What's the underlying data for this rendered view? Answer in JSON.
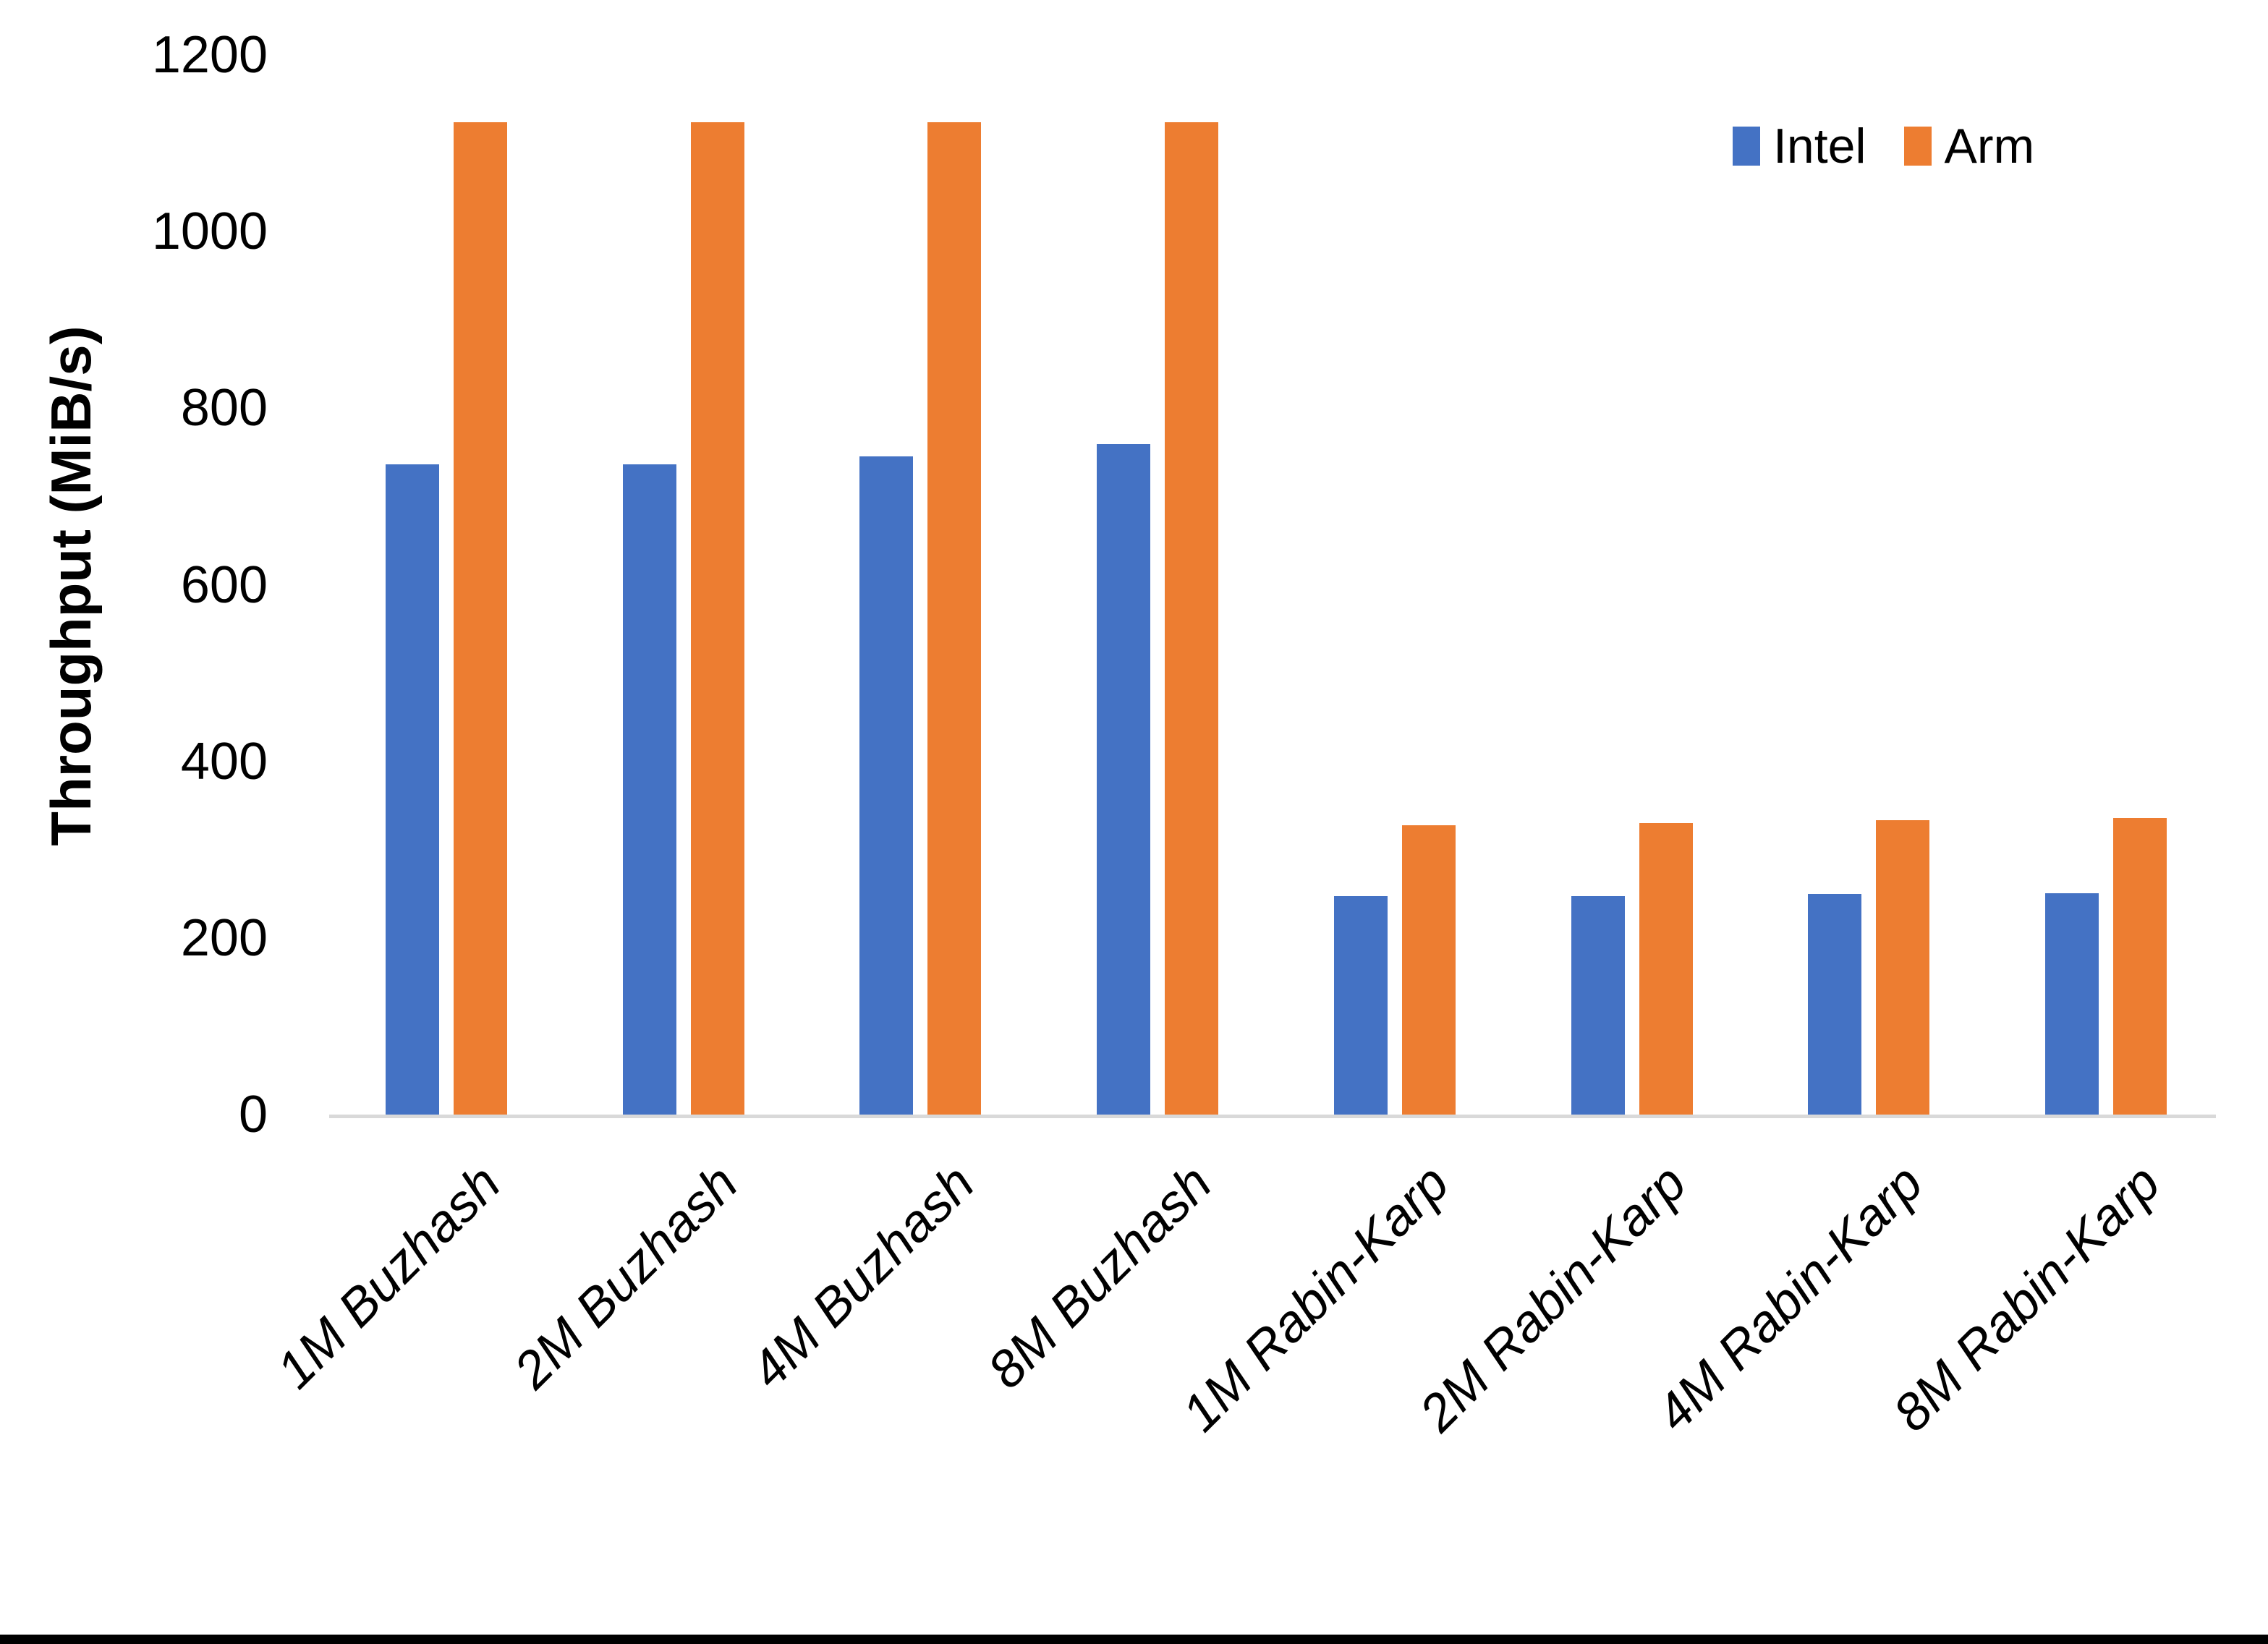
{
  "chart_data": {
    "type": "bar",
    "title": "",
    "xlabel": "",
    "ylabel": "Throughput (MiB/s)",
    "ylim": [
      0,
      1200
    ],
    "yticks": [
      0,
      200,
      400,
      600,
      800,
      1000,
      1200
    ],
    "grid": false,
    "legend_position": "top-right",
    "categories": [
      "1M Buzhash",
      "2M Buzhash",
      "4M Buzhash",
      "8M Buzhash",
      "1M Rabin-Karp",
      "2M Rabin-Karp",
      "4M Rabin-Karp",
      "8M Rabin-Karp"
    ],
    "series": [
      {
        "name": "Intel",
        "color": "#4472C4",
        "values": [
          736,
          736,
          745,
          759,
          247,
          247,
          250,
          251
        ]
      },
      {
        "name": "Arm",
        "color": "#ED7D31",
        "values": [
          1124,
          1124,
          1124,
          1124,
          328,
          330,
          333,
          336
        ]
      }
    ]
  },
  "legend": {
    "items": [
      {
        "label": "Intel",
        "color": "#4472C4"
      },
      {
        "label": "Arm",
        "color": "#ED7D31"
      }
    ]
  },
  "axis": {
    "line_color": "#D9D9D9",
    "text_color": "#000000"
  },
  "frame": {
    "bottom_bar_color": "#000000"
  }
}
